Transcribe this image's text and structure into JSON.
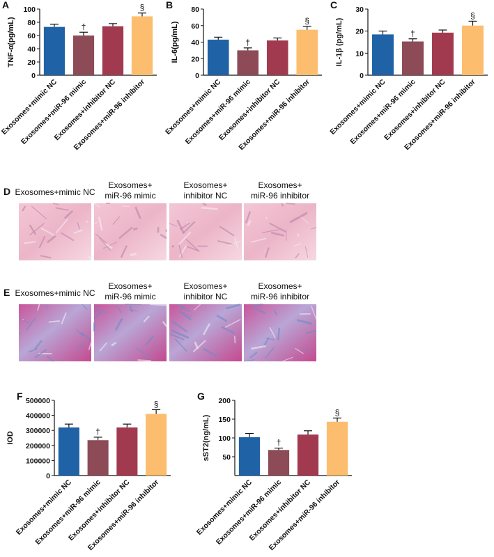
{
  "chart_data": [
    {
      "type": "bar",
      "label": "A",
      "ylabel": "TNF-α(pg/mL)",
      "categories": [
        "Exosomes+mimic NC",
        "Exosomes+miR-96 mimic",
        "Exosomes+inhibitor NC",
        "Exosomes+miR-96 inhibitor"
      ],
      "values": [
        73,
        60,
        74,
        89
      ],
      "errors": [
        4,
        5,
        4,
        5
      ],
      "markers": [
        null,
        "†",
        null,
        "§"
      ],
      "colors": [
        "#1f63a6",
        "#8c4b56",
        "#a23a4f",
        "#fcbe6e"
      ],
      "ylim": [
        0,
        100
      ],
      "yticks": [
        0,
        20,
        40,
        60,
        80,
        100
      ]
    },
    {
      "type": "bar",
      "label": "B",
      "ylabel": "IL-6(pg/mL)",
      "categories": [
        "Exosomes+mimic NC",
        "Exosomes+miR-96 mimic",
        "Exosomes+inhibitor NC",
        "Exosomes+miR-96 inhibitor"
      ],
      "values": [
        43,
        30,
        42,
        55
      ],
      "errors": [
        3,
        3,
        3,
        4
      ],
      "markers": [
        null,
        "†",
        null,
        "§"
      ],
      "colors": [
        "#1f63a6",
        "#8c4b56",
        "#a23a4f",
        "#fcbe6e"
      ],
      "ylim": [
        0,
        80
      ],
      "yticks": [
        0,
        20,
        40,
        60,
        80
      ]
    },
    {
      "type": "bar",
      "label": "C",
      "ylabel": "IL-1β (pg/mL)",
      "categories": [
        "Exosomes+mimic NC",
        "Exosomes+miR-96 mimic",
        "Exosomes+inhibitor NC",
        "Exosomes+miR-96 inhibitor"
      ],
      "values": [
        18.5,
        15.3,
        19.3,
        22.5
      ],
      "errors": [
        1.5,
        1.2,
        1.2,
        2
      ],
      "markers": [
        null,
        "†",
        null,
        "§"
      ],
      "colors": [
        "#1f63a6",
        "#8c4b56",
        "#a23a4f",
        "#fcbe6e"
      ],
      "ylim": [
        0,
        30
      ],
      "yticks": [
        0,
        10,
        20,
        30
      ]
    },
    {
      "type": "bar",
      "label": "F",
      "ylabel": "IOD",
      "categories": [
        "Exosomes+mimic NC",
        "Exosomes+miR-96 mimic",
        "Exosomes+inhibitor NC",
        "Exosomes+miR-96 inhibitor"
      ],
      "values": [
        320000,
        235000,
        320000,
        410000
      ],
      "errors": [
        22000,
        20000,
        22000,
        28000
      ],
      "markers": [
        null,
        "†",
        null,
        "§"
      ],
      "colors": [
        "#1f63a6",
        "#8c4b56",
        "#a23a4f",
        "#fcbe6e"
      ],
      "ylim": [
        0,
        500000
      ],
      "yticks": [
        0,
        100000,
        200000,
        300000,
        400000,
        500000
      ]
    },
    {
      "type": "bar",
      "label": "G",
      "ylabel": "sST2(ng/mL)",
      "categories": [
        "Exosomes+mimic NC",
        "Exosomes+miR-96 mimic",
        "Exosomes+inhibitor NC",
        "Exosomes+miR-96 inhibitor"
      ],
      "values": [
        102,
        68,
        109,
        143
      ],
      "errors": [
        10,
        5,
        10,
        10
      ],
      "markers": [
        null,
        "†",
        null,
        "§"
      ],
      "colors": [
        "#1f63a6",
        "#8c4b56",
        "#a23a4f",
        "#fcbe6e"
      ],
      "ylim": [
        0,
        200
      ],
      "yticks": [
        50,
        100,
        150,
        200
      ]
    }
  ],
  "image_panels": [
    {
      "label": "D",
      "captions": [
        [
          "Exosomes+mimic NC"
        ],
        [
          "Exosomes+",
          "miR-96 mimic"
        ],
        [
          "Exosomes+",
          "inhibitor NC"
        ],
        [
          "Exosomes+",
          "miR-96 inhibitor"
        ]
      ]
    },
    {
      "label": "E",
      "captions": [
        [
          "Exosomes+mimic NC"
        ],
        [
          "Exosomes+",
          "miR-96 mimic"
        ],
        [
          "Exosomes+",
          "inhibitor NC"
        ],
        [
          "Exosomes+",
          "miR-96 inhibitor"
        ]
      ]
    }
  ]
}
